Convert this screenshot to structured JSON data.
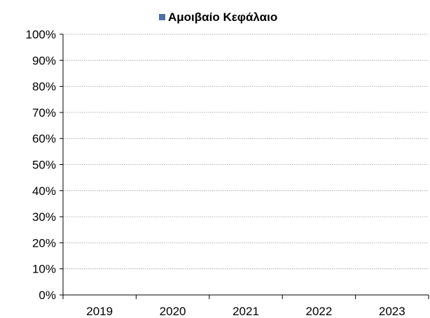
{
  "chart_data": {
    "type": "bar",
    "categories": [
      "2019",
      "2020",
      "2021",
      "2022",
      "2023"
    ],
    "series": [
      {
        "name": "Αμοιβαίο Κεφάλαιο",
        "values": [
          0,
          0,
          0,
          0,
          0
        ],
        "color": "#4f6fa8"
      }
    ],
    "y_ticks": [
      "0%",
      "10%",
      "20%",
      "30%",
      "40%",
      "50%",
      "60%",
      "70%",
      "80%",
      "90%",
      "100%"
    ],
    "ylim": [
      0,
      100
    ],
    "grid": "horizontal-dotted",
    "legend": "top-center"
  }
}
